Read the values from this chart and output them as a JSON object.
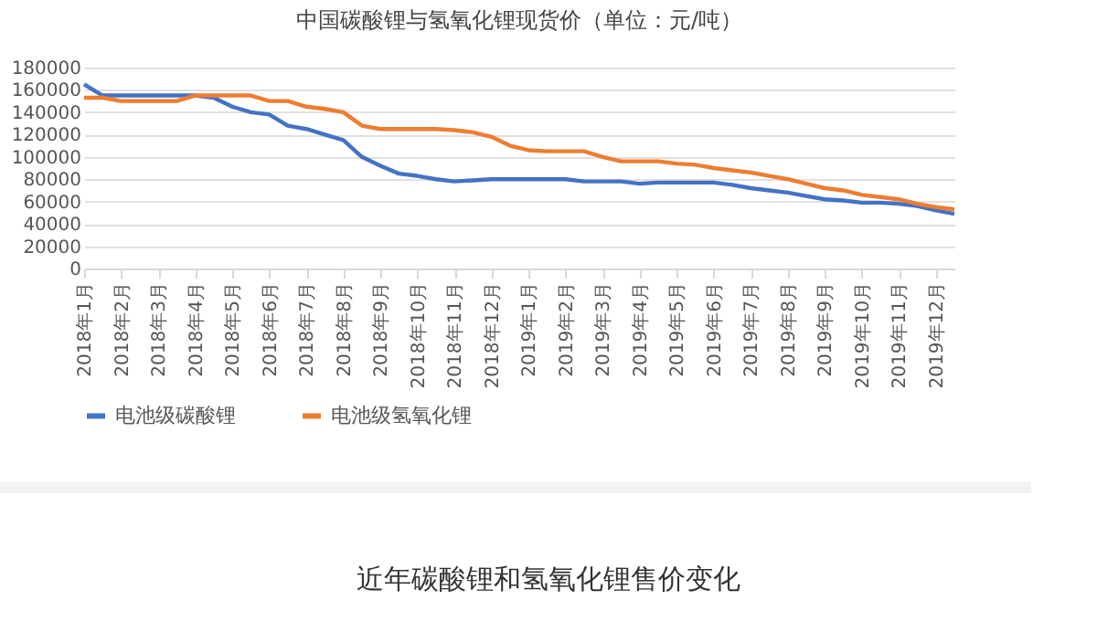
{
  "chart_data": {
    "type": "line",
    "title": "中国碳酸锂与氢氧化锂现货价（单位：元/吨）",
    "categories": [
      "2018年1月",
      null,
      "2018年2月",
      null,
      "2018年3月",
      null,
      "2018年4月",
      null,
      "2018年5月",
      null,
      "2018年6月",
      null,
      "2018年7月",
      null,
      "2018年8月",
      null,
      "2018年9月",
      null,
      "2018年10月",
      null,
      "2018年11月",
      null,
      "2018年12月",
      null,
      "2019年1月",
      null,
      "2019年2月",
      null,
      "2019年3月",
      null,
      "2019年4月",
      null,
      "2019年5月",
      null,
      "2019年6月",
      null,
      "2019年7月",
      null,
      "2019年8月",
      null,
      "2019年9月",
      null,
      "2019年10月",
      null,
      "2019年11月",
      null,
      "2019年12月",
      null
    ],
    "series": [
      {
        "name": "电池级碳酸锂",
        "color": "#4472c4",
        "values": [
          165000,
          155000,
          155000,
          155000,
          155000,
          155000,
          155000,
          153000,
          145000,
          140000,
          138000,
          128000,
          125000,
          120000,
          115000,
          100000,
          92000,
          85000,
          83000,
          80000,
          78000,
          79000,
          80000,
          80000,
          80000,
          80000,
          80000,
          78000,
          78000,
          78000,
          76000,
          77000,
          77000,
          77000,
          77000,
          75000,
          72000,
          70000,
          68000,
          65000,
          62000,
          61000,
          59000,
          59000,
          58000,
          56000,
          52000,
          49000
        ]
      },
      {
        "name": "电池级氢氧化锂",
        "color": "#ed7d31",
        "values": [
          153000,
          153000,
          150000,
          150000,
          150000,
          150000,
          155000,
          155000,
          155000,
          155000,
          150000,
          150000,
          145000,
          143000,
          140000,
          128000,
          125000,
          125000,
          125000,
          125000,
          124000,
          122000,
          118000,
          110000,
          106000,
          105000,
          105000,
          105000,
          100000,
          96000,
          96000,
          96000,
          94000,
          93000,
          90000,
          88000,
          86000,
          83000,
          80000,
          76000,
          72000,
          70000,
          66000,
          64000,
          62000,
          58000,
          55000,
          53000
        ]
      }
    ],
    "ylim": [
      0,
      180000
    ],
    "yticks": [
      0,
      20000,
      40000,
      60000,
      80000,
      100000,
      120000,
      140000,
      160000,
      180000
    ],
    "grid": "y",
    "legend": "bottom",
    "marker": "none",
    "line_style": "solid",
    "annotations": [
      "近年碳酸锂和氢氧化锂售价变化"
    ]
  }
}
